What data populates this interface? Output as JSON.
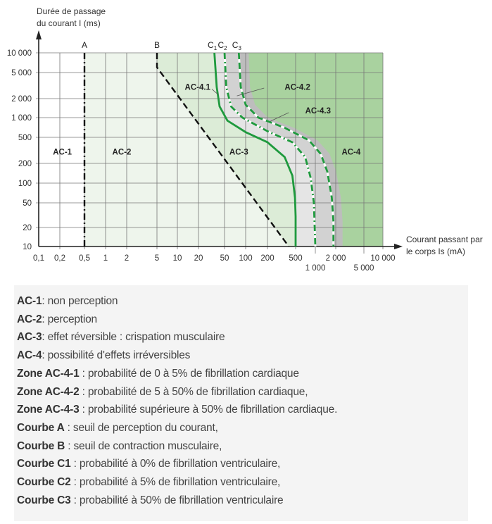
{
  "chart_data": {
    "type": "line",
    "ylabel_line1": "Durée de passage",
    "ylabel_line2": "du courant I (ms)",
    "xlabel_line1": "Courant passant par",
    "xlabel_line2": "le corps Is (mA)",
    "xscale": "log",
    "yscale": "log",
    "xlim": [
      0.1,
      10000
    ],
    "ylim": [
      10,
      10000
    ],
    "grid": true,
    "x_ticks": [
      {
        "v": 0.1,
        "label": "0,1",
        "row": 1
      },
      {
        "v": 0.2,
        "label": "0,2",
        "row": 1
      },
      {
        "v": 0.5,
        "label": "0,5",
        "row": 1
      },
      {
        "v": 1,
        "label": "1",
        "row": 1
      },
      {
        "v": 2,
        "label": "2",
        "row": 1
      },
      {
        "v": 5,
        "label": "5",
        "row": 1
      },
      {
        "v": 10,
        "label": "10",
        "row": 1
      },
      {
        "v": 20,
        "label": "20",
        "row": 1
      },
      {
        "v": 50,
        "label": "50",
        "row": 1
      },
      {
        "v": 100,
        "label": "100",
        "row": 1
      },
      {
        "v": 200,
        "label": "200",
        "row": 1
      },
      {
        "v": 500,
        "label": "500",
        "row": 1
      },
      {
        "v": 1000,
        "label": "1 000",
        "row": 2
      },
      {
        "v": 2000,
        "label": "2 000",
        "row": 1
      },
      {
        "v": 5000,
        "label": "5 000",
        "row": 2
      },
      {
        "v": 10000,
        "label": "10 000",
        "row": 1
      }
    ],
    "y_ticks": [
      {
        "v": 10,
        "label": "10"
      },
      {
        "v": 20,
        "label": "20"
      },
      {
        "v": 50,
        "label": "50"
      },
      {
        "v": 100,
        "label": "100"
      },
      {
        "v": 200,
        "label": "200"
      },
      {
        "v": 500,
        "label": "500"
      },
      {
        "v": 1000,
        "label": "1 000"
      },
      {
        "v": 2000,
        "label": "2 000"
      },
      {
        "v": 5000,
        "label": "5 000"
      },
      {
        "v": 10000,
        "label": "10 000"
      }
    ],
    "curves": [
      {
        "name": "A",
        "label": "A",
        "style": "dashdot",
        "color": "#111111",
        "points": [
          [
            0.5,
            10000
          ],
          [
            0.5,
            10
          ]
        ]
      },
      {
        "name": "B",
        "label": "B",
        "style": "dashed",
        "color": "#111111",
        "points": [
          [
            5,
            10000
          ],
          [
            5,
            6000
          ],
          [
            400,
            10
          ]
        ]
      },
      {
        "name": "C1",
        "label": "C",
        "sub": "1",
        "style": "solid",
        "color": "#1f9a3e",
        "points": [
          [
            35,
            10000
          ],
          [
            38,
            3000
          ],
          [
            42,
            1500
          ],
          [
            55,
            900
          ],
          [
            100,
            600
          ],
          [
            200,
            420
          ],
          [
            350,
            250
          ],
          [
            450,
            130
          ],
          [
            490,
            60
          ],
          [
            500,
            30
          ],
          [
            500,
            10
          ]
        ]
      },
      {
        "name": "C2",
        "label": "C",
        "sub": "2",
        "style": "dashdot",
        "color": "#1f9a3e",
        "points": [
          [
            50,
            10000
          ],
          [
            53,
            3000
          ],
          [
            62,
            1500
          ],
          [
            90,
            1000
          ],
          [
            200,
            620
          ],
          [
            450,
            420
          ],
          [
            700,
            250
          ],
          [
            850,
            120
          ],
          [
            950,
            50
          ],
          [
            1000,
            10
          ]
        ]
      },
      {
        "name": "C3",
        "label": "C",
        "sub": "3",
        "style": "dashed",
        "color": "#1f9a3e",
        "points": [
          [
            80,
            10000
          ],
          [
            85,
            3000
          ],
          [
            100,
            1600
          ],
          [
            150,
            1000
          ],
          [
            350,
            700
          ],
          [
            800,
            450
          ],
          [
            1200,
            280
          ],
          [
            1500,
            150
          ],
          [
            1750,
            60
          ],
          [
            1850,
            25
          ],
          [
            1850,
            10
          ]
        ]
      }
    ],
    "zones": [
      {
        "name": "AC-1",
        "label": "AC-1",
        "color": "#ffffff",
        "at": [
          0.22,
          300
        ]
      },
      {
        "name": "AC-2",
        "label": "AC-2",
        "color": "#eef5ec",
        "at": [
          1.7,
          300
        ]
      },
      {
        "name": "AC-3",
        "label": "AC-3",
        "color": "#dcecd7",
        "at": [
          80,
          300
        ]
      },
      {
        "name": "AC-4",
        "label": "AC-4",
        "color": "#a9d29f",
        "at": [
          3300,
          300
        ]
      },
      {
        "name": "AC-4.1",
        "label": "AC-4.1",
        "color": "#e5e5e5",
        "at": [
          13,
          3000
        ],
        "leader": [
          [
            32,
            2800
          ],
          [
            40,
            2300
          ]
        ]
      },
      {
        "name": "AC-4.2",
        "label": "AC-4.2",
        "color": "#d2d2d2",
        "at": [
          350,
          3000
        ],
        "leader": [
          [
            180,
            2900
          ],
          [
            75,
            2200
          ]
        ]
      },
      {
        "name": "AC-4.3",
        "label": "AC-4.3",
        "color": "#bdbdbd",
        "at": [
          700,
          1300
        ],
        "leader": [
          [
            400,
            1200
          ],
          [
            220,
            880
          ]
        ]
      }
    ]
  },
  "legend": [
    {
      "term": "AC-1",
      "text": ": non perception"
    },
    {
      "term": "AC-2",
      "text": ": perception"
    },
    {
      "term": "AC-3",
      "text": ": effet réversible : crispation musculaire"
    },
    {
      "term": "AC-4",
      "text": ": possibilité d'effets irréversibles"
    },
    {
      "term": "Zone AC-4-1",
      "text": " : probabilité de 0 à 5% de fibrillation cardiaque"
    },
    {
      "term": "Zone AC-4-2",
      "text": " : probabilité de 5 à 50% de fibrillation cardiaque,"
    },
    {
      "term": "Zone AC-4-3",
      "text": " : probabilité supérieure à 50% de fibrillation cardiaque."
    },
    {
      "term": "Courbe A",
      "text": " : seuil de perception du courant,"
    },
    {
      "term": "Courbe B",
      "text": " : seuil de contraction musculaire,"
    },
    {
      "term": "Courbe C1",
      "text": " : probabilité à 0% de fibrillation ventriculaire,"
    },
    {
      "term": "Courbe C2",
      "text": " : probabilité à 5% de fibrillation ventriculaire,"
    },
    {
      "term": "Courbe C3",
      "text": " : probabilité à 50% de fibrillation ventriculaire"
    }
  ]
}
